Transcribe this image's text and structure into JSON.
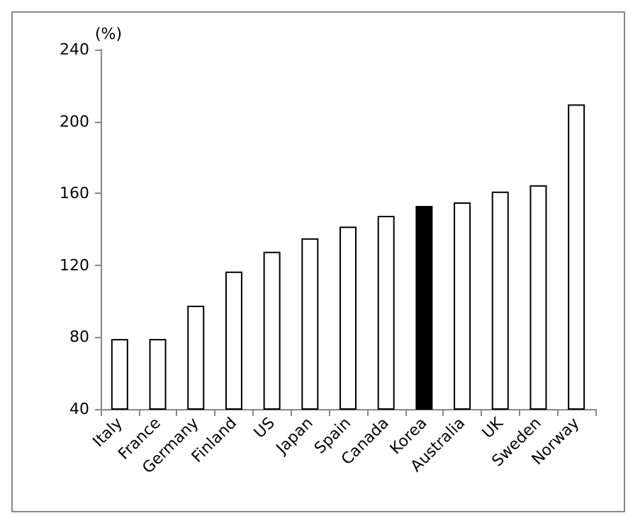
{
  "chart_data": {
    "type": "bar",
    "ylabel": "(%)",
    "categories": [
      "Italy",
      "France",
      "Germany",
      "Finland",
      "US",
      "Japan",
      "Spain",
      "Canada",
      "Korea",
      "Australia",
      "UK",
      "Sweden",
      "Norway"
    ],
    "values": [
      79,
      79,
      97.5,
      116.5,
      127.5,
      135,
      141.5,
      147.5,
      153,
      155,
      161,
      164.5,
      209.5
    ],
    "colors": [
      "#ffffff",
      "#ffffff",
      "#ffffff",
      "#ffffff",
      "#ffffff",
      "#ffffff",
      "#ffffff",
      "#ffffff",
      "#000000",
      "#ffffff",
      "#ffffff",
      "#ffffff",
      "#ffffff"
    ],
    "ylim": [
      40,
      240
    ],
    "yticks": [
      40,
      80,
      120,
      160,
      200,
      240
    ],
    "grid": false
  }
}
